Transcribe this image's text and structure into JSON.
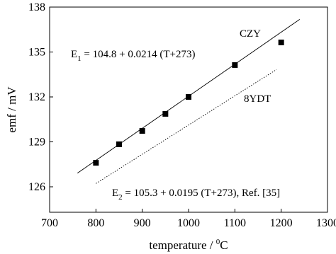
{
  "chart_data": {
    "type": "scatter-line",
    "xlabel_parts": [
      "temperature / ",
      "0",
      "C"
    ],
    "ylabel": "emf / mV",
    "xlim": [
      700,
      1300
    ],
    "xticks": [
      700,
      800,
      900,
      1000,
      1100,
      1200,
      1300
    ],
    "ylim": [
      124.3,
      138
    ],
    "yticks": [
      126,
      129,
      132,
      135,
      138
    ],
    "points": {
      "color": "#000000",
      "x": [
        800,
        850,
        900,
        950,
        1000,
        1100,
        1200
      ],
      "values": [
        127.6,
        128.84,
        129.73,
        130.87,
        132.0,
        134.13,
        135.64
      ]
    },
    "lines": [
      {
        "style": "solid",
        "color": "#000000",
        "x": [
          760,
          1240
        ],
        "values": [
          126.91,
          137.18
        ]
      },
      {
        "style": "dotted",
        "color": "#000000",
        "x": [
          800,
          1190
        ],
        "values": [
          126.22,
          133.83
        ]
      }
    ],
    "annotations": [
      {
        "parts": [
          "CZY"
        ]
      },
      {
        "parts": [
          "E",
          "1",
          " = 104.8 + 0.0214 (T+273)"
        ]
      },
      {
        "parts": [
          "8YDT"
        ]
      },
      {
        "parts": [
          "E",
          "2",
          " = 105.3 + 0.0195 (T+273), Ref. [35]"
        ]
      }
    ]
  }
}
